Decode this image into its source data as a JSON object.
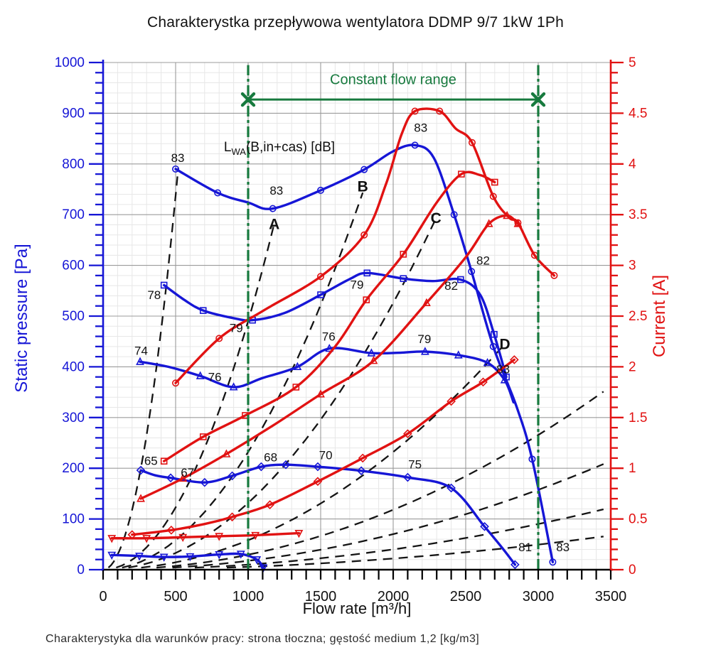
{
  "title": "Charakterystka przepływowa wentylatora DDMP 9/7 1kW 1Ph",
  "caption": "Charakterystyka dla warunków pracy: strona tłoczna; gęstość medium 1,2 [kg/m3]",
  "lwa_label": {
    "pre": "L",
    "sub": "WA",
    "post": "(B,in+cas) [dB]"
  },
  "axes_titles": {
    "pressure": "Static pressure [Pa]",
    "current": "Current [A]",
    "flow": "Flow rate [m³/h]"
  },
  "chart_data": {
    "type": "line",
    "title": "Charakterystka przepływowa wentylatora DDMP 9/7 1kW 1Ph",
    "layout": {
      "pl": 145,
      "pr": 859,
      "pt": 88,
      "pb": 802,
      "grid": "on",
      "legend": "none"
    },
    "colors": {
      "pressure": "#1616d6",
      "current": "#e11212",
      "system": "#141414",
      "grid_major": "#9b9b9b",
      "grid_minor": "#e7e7e7",
      "green": "#177a3e"
    },
    "axes": {
      "x": {
        "label": "Flow rate [m³/h]",
        "min": 0,
        "max": 3500,
        "major": 500,
        "minor": 100
      },
      "pressure": {
        "label": "Static pressure [Pa]",
        "min": 0,
        "max": 1000,
        "major": 100,
        "minor": 20
      },
      "current": {
        "label": "Current [A]",
        "min": 0,
        "max": 5,
        "major": 0.5,
        "minor": 0.1
      }
    },
    "constant_flow": {
      "label": "Constant flow range",
      "from": 1000,
      "to": 3000,
      "bar_p": 927,
      "label_p": 957,
      "top_p": 995
    },
    "series": [
      {
        "name": "pressure-curve-A",
        "axis": "pressure",
        "color": "#1616d6",
        "marker": "circle",
        "points": [
          [
            500,
            790,
            1
          ],
          [
            790,
            743,
            1
          ],
          [
            1000,
            724,
            0
          ],
          [
            1170,
            712,
            1
          ],
          [
            1500,
            748,
            1
          ],
          [
            1800,
            789,
            1
          ],
          [
            2000,
            825,
            0
          ],
          [
            2150,
            837,
            1
          ],
          [
            2280,
            812,
            0
          ],
          [
            2420,
            700,
            1
          ],
          [
            2540,
            588,
            1
          ],
          [
            2690,
            440,
            1
          ],
          [
            2850,
            322,
            0
          ],
          [
            2958,
            218,
            1
          ],
          [
            3100,
            15,
            1
          ]
        ]
      },
      {
        "name": "pressure-curve-B",
        "axis": "pressure",
        "color": "#1616d6",
        "marker": "square",
        "points": [
          [
            420,
            561,
            1
          ],
          [
            560,
            532,
            0
          ],
          [
            690,
            511,
            1
          ],
          [
            900,
            496,
            0
          ],
          [
            1030,
            492,
            1
          ],
          [
            1250,
            506,
            0
          ],
          [
            1500,
            542,
            1
          ],
          [
            1700,
            573,
            0
          ],
          [
            1820,
            585,
            1
          ],
          [
            2070,
            574,
            1
          ],
          [
            2270,
            569,
            0
          ],
          [
            2465,
            572,
            1
          ],
          [
            2600,
            542,
            0
          ],
          [
            2696,
            464,
            1
          ],
          [
            2780,
            380,
            1
          ]
        ]
      },
      {
        "name": "pressure-curve-C",
        "axis": "pressure",
        "color": "#1616d6",
        "marker": "triangle",
        "points": [
          [
            255,
            410,
            1
          ],
          [
            450,
            400,
            0
          ],
          [
            670,
            382,
            1
          ],
          [
            900,
            360,
            1
          ],
          [
            1100,
            378,
            0
          ],
          [
            1340,
            400,
            1
          ],
          [
            1560,
            436,
            1
          ],
          [
            1850,
            427,
            1
          ],
          [
            2060,
            428,
            0
          ],
          [
            2220,
            430,
            1
          ],
          [
            2450,
            423,
            1
          ],
          [
            2650,
            408,
            1
          ],
          [
            2768,
            374,
            1
          ],
          [
            2830,
            330,
            0
          ]
        ]
      },
      {
        "name": "pressure-curve-D",
        "axis": "pressure",
        "color": "#1616d6",
        "marker": "diamond",
        "points": [
          [
            260,
            196,
            1
          ],
          [
            360,
            186,
            0
          ],
          [
            466,
            181,
            1
          ],
          [
            700,
            172,
            1
          ],
          [
            890,
            185,
            1
          ],
          [
            1090,
            203,
            1
          ],
          [
            1260,
            207,
            1
          ],
          [
            1480,
            203,
            1
          ],
          [
            1780,
            195,
            1
          ],
          [
            2100,
            182,
            1
          ],
          [
            2400,
            161,
            1
          ],
          [
            2630,
            85,
            1
          ],
          [
            2760,
            40,
            0
          ],
          [
            2840,
            10,
            1
          ]
        ]
      },
      {
        "name": "pressure-curve-E",
        "axis": "pressure",
        "color": "#1616d6",
        "marker": "tri-down",
        "points": [
          [
            60,
            29,
            1
          ],
          [
            250,
            27,
            1
          ],
          [
            420,
            25,
            1
          ],
          [
            600,
            26,
            1
          ],
          [
            800,
            30,
            1
          ],
          [
            950,
            31,
            1
          ],
          [
            1060,
            20,
            1
          ],
          [
            1105,
            4,
            1
          ]
        ]
      },
      {
        "name": "current-curve-A",
        "axis": "current",
        "color": "#e11212",
        "marker": "circle",
        "points": [
          [
            500,
            1.84,
            1
          ],
          [
            800,
            2.28,
            1
          ],
          [
            1100,
            2.55,
            0
          ],
          [
            1500,
            2.89,
            1
          ],
          [
            1800,
            3.3,
            1
          ],
          [
            1950,
            3.8,
            0
          ],
          [
            2060,
            4.3,
            0
          ],
          [
            2150,
            4.52,
            1
          ],
          [
            2320,
            4.52,
            1
          ],
          [
            2430,
            4.35,
            0
          ],
          [
            2544,
            4.21,
            1
          ],
          [
            2690,
            3.68,
            1
          ],
          [
            2800,
            3.47,
            0
          ],
          [
            2860,
            3.42,
            1
          ],
          [
            2975,
            3.1,
            1
          ],
          [
            3110,
            2.9,
            1
          ]
        ]
      },
      {
        "name": "current-curve-B",
        "axis": "current",
        "color": "#e11212",
        "marker": "square",
        "points": [
          [
            420,
            1.07,
            1
          ],
          [
            690,
            1.31,
            1
          ],
          [
            980,
            1.52,
            1
          ],
          [
            1330,
            1.8,
            1
          ],
          [
            1600,
            2.2,
            0
          ],
          [
            1815,
            2.66,
            1
          ],
          [
            2070,
            3.11,
            1
          ],
          [
            2300,
            3.62,
            0
          ],
          [
            2470,
            3.9,
            1
          ],
          [
            2600,
            3.89,
            0
          ],
          [
            2700,
            3.82,
            1
          ]
        ]
      },
      {
        "name": "current-curve-C",
        "axis": "current",
        "color": "#e11212",
        "marker": "triangle",
        "points": [
          [
            260,
            0.7,
            1
          ],
          [
            550,
            0.9,
            1
          ],
          [
            850,
            1.14,
            1
          ],
          [
            1170,
            1.42,
            0
          ],
          [
            1500,
            1.73,
            1
          ],
          [
            1865,
            2.06,
            1
          ],
          [
            2230,
            2.63,
            1
          ],
          [
            2500,
            3.08,
            0
          ],
          [
            2660,
            3.41,
            1
          ],
          [
            2785,
            3.49,
            1
          ],
          [
            2860,
            3.41,
            1
          ]
        ]
      },
      {
        "name": "current-curve-D",
        "axis": "current",
        "color": "#e11212",
        "marker": "diamond",
        "points": [
          [
            200,
            0.345,
            1
          ],
          [
            470,
            0.39,
            1
          ],
          [
            700,
            0.45,
            0
          ],
          [
            890,
            0.52,
            1
          ],
          [
            1150,
            0.64,
            1
          ],
          [
            1480,
            0.87,
            1
          ],
          [
            1790,
            1.1,
            1
          ],
          [
            2100,
            1.34,
            1
          ],
          [
            2400,
            1.66,
            1
          ],
          [
            2620,
            1.85,
            1
          ],
          [
            2835,
            2.07,
            1
          ]
        ]
      },
      {
        "name": "current-curve-E",
        "axis": "current",
        "color": "#e11212",
        "marker": "tri-down",
        "points": [
          [
            60,
            0.31,
            1
          ],
          [
            300,
            0.31,
            1
          ],
          [
            550,
            0.32,
            1
          ],
          [
            800,
            0.33,
            1
          ],
          [
            1050,
            0.34,
            1
          ],
          [
            1350,
            0.36,
            1
          ]
        ]
      }
    ],
    "system_lines": [
      {
        "name": "surge-line",
        "k": 0.00295,
        "q_end": 518
      },
      {
        "name": "duty-line-A",
        "k": 0.00049,
        "q_end": 1180
      },
      {
        "name": "duty-line-B",
        "k": 0.000232,
        "q_end": 1790
      },
      {
        "name": "duty-line-C",
        "k": 0.0001315,
        "q_end": 2290
      },
      {
        "name": "duty-line-D",
        "k": 5.8e-05,
        "q_end": 2755
      },
      {
        "name": "duty-line-E",
        "k": 2.95e-05,
        "q_end": 3450
      },
      {
        "name": "duty-line-F",
        "k": 1.75e-05,
        "q_end": 3450
      },
      {
        "name": "duty-line-G",
        "k": 1e-05,
        "q_end": 3450
      },
      {
        "name": "duty-line-H",
        "k": 5.5e-06,
        "q_end": 3450
      }
    ],
    "annotations": [
      {
        "t": "83",
        "q": 515,
        "p": 812,
        "b": 0
      },
      {
        "t": "83",
        "q": 1195,
        "p": 748,
        "b": 0
      },
      {
        "t": "83",
        "q": 2190,
        "p": 872,
        "b": 0
      },
      {
        "t": "82",
        "q": 2620,
        "p": 610,
        "b": 0
      },
      {
        "t": "82",
        "q": 2400,
        "p": 560,
        "b": 0
      },
      {
        "t": "83",
        "q": 3170,
        "p": 45,
        "b": 0
      },
      {
        "t": "81",
        "q": 2910,
        "p": 45,
        "b": 0
      },
      {
        "t": "78",
        "q": 352,
        "p": 542,
        "b": 0
      },
      {
        "t": "79",
        "q": 918,
        "p": 477,
        "b": 0
      },
      {
        "t": "79",
        "q": 1750,
        "p": 562,
        "b": 0
      },
      {
        "t": "74",
        "q": 262,
        "p": 432,
        "b": 0
      },
      {
        "t": "76",
        "q": 770,
        "p": 380,
        "b": 0
      },
      {
        "t": "76",
        "q": 1555,
        "p": 460,
        "b": 0
      },
      {
        "t": "79",
        "q": 2215,
        "p": 455,
        "b": 0
      },
      {
        "t": "65",
        "q": 330,
        "p": 215,
        "b": 0
      },
      {
        "t": "67",
        "q": 582,
        "p": 192,
        "b": 0
      },
      {
        "t": "68",
        "q": 1155,
        "p": 222,
        "b": 0
      },
      {
        "t": "70",
        "q": 1535,
        "p": 226,
        "b": 0
      },
      {
        "t": "75",
        "q": 2150,
        "p": 208,
        "b": 0
      },
      {
        "t": "83",
        "q": 2758,
        "p": 396,
        "b": 0
      },
      {
        "t": "A",
        "q": 1180,
        "p": 680,
        "b": 1
      },
      {
        "t": "B",
        "q": 1790,
        "p": 754,
        "b": 1
      },
      {
        "t": "C",
        "q": 2295,
        "p": 692,
        "b": 1
      },
      {
        "t": "D",
        "q": 2770,
        "p": 443,
        "b": 1
      }
    ]
  }
}
